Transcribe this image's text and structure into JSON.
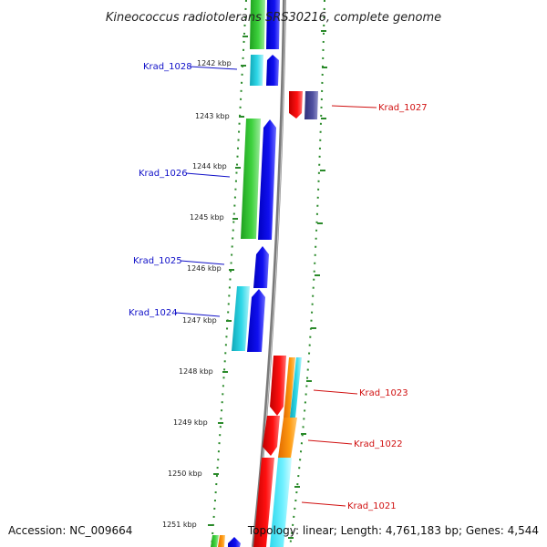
{
  "title": "Kineococcus radiotolerans SRS30216, complete genome",
  "accession": "Accession: NC_009664",
  "summary": "Topology: linear; Length: 4,761,183 bp; Genes: 4,544",
  "colors": {
    "green": "#2db82d",
    "cyan": "#20c8d8",
    "blue": "#0a0ae6",
    "red": "#ee1111",
    "orange": "#ff8a00",
    "navy": "#4a4a90",
    "forward_label": "#1010c8",
    "reverse_label": "#d01010",
    "tick": "#2a8a2a",
    "backbone": "#8a8a8a"
  },
  "kbp_labels": [
    "1242 kbp",
    "1243 kbp",
    "1244 kbp",
    "1245 kbp",
    "1246 kbp",
    "1247 kbp",
    "1248 kbp",
    "1249 kbp",
    "1250 kbp",
    "1251 kbp"
  ],
  "gene_labels": [
    {
      "id": "krad-1028",
      "text": "Krad_1028",
      "strand": "forward"
    },
    {
      "id": "krad-1027",
      "text": "Krad_1027",
      "strand": "reverse"
    },
    {
      "id": "krad-1026",
      "text": "Krad_1026",
      "strand": "forward"
    },
    {
      "id": "krad-1025",
      "text": "Krad_1025",
      "strand": "forward"
    },
    {
      "id": "krad-1024",
      "text": "Krad_1024",
      "strand": "forward"
    },
    {
      "id": "krad-1023",
      "text": "Krad_1023",
      "strand": "reverse"
    },
    {
      "id": "krad-1022",
      "text": "Krad_1022",
      "strand": "reverse"
    },
    {
      "id": "krad-1021",
      "text": "Krad_1021",
      "strand": "reverse"
    }
  ]
}
